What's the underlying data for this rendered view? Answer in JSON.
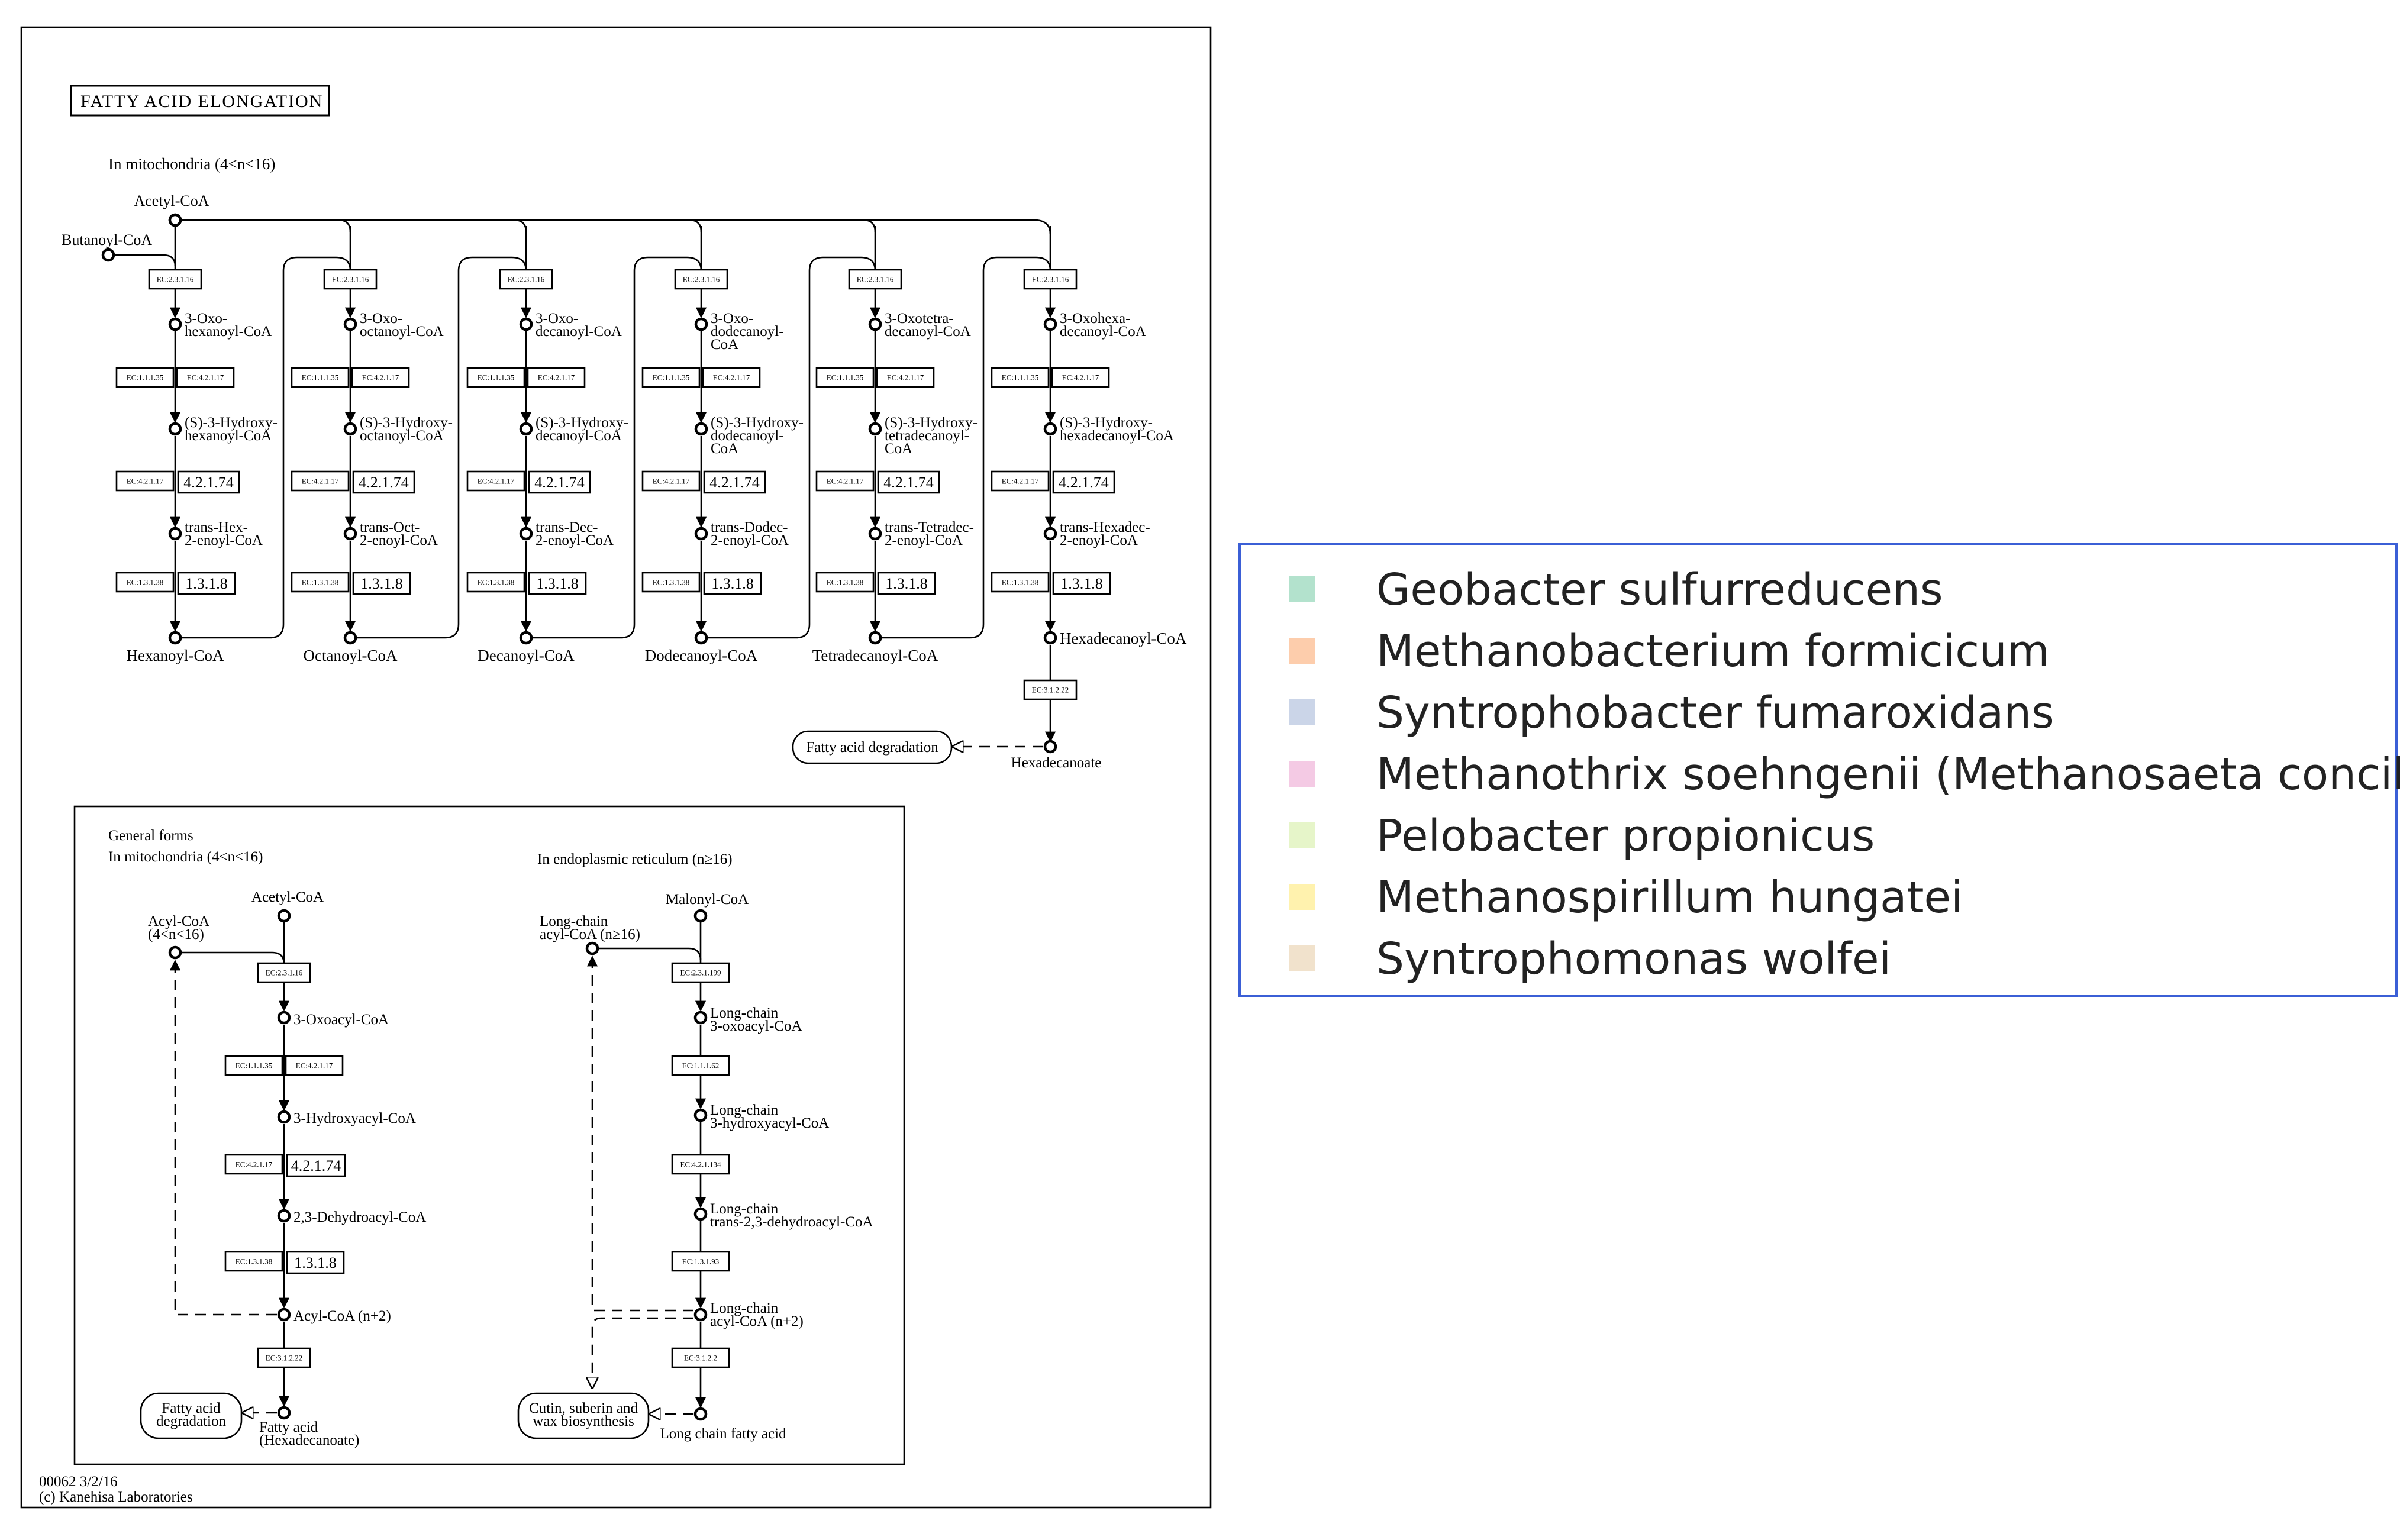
{
  "map": {
    "title": "FATTY ACID ELONGATION",
    "footer_id": "00062 3/2/16",
    "footer_copyright": "(c) Kanehisa Laboratories",
    "section_mito": "In mitochondria (4<n<16)",
    "top": {
      "acetyl": "Acetyl-CoA",
      "butanoyl": "Butanoyl-CoA",
      "columns": [
        {
          "oxo": [
            "3-Oxo-",
            "hexanoyl-CoA"
          ],
          "hydroxy": [
            "(S)-3-Hydroxy-",
            "hexanoyl-CoA"
          ],
          "enoyl": [
            "trans-Hex-",
            "2-enoyl-CoA"
          ],
          "product": "Hexanoyl-CoA"
        },
        {
          "oxo": [
            "3-Oxo-",
            "octanoyl-CoA"
          ],
          "hydroxy": [
            "(S)-3-Hydroxy-",
            "octanoyl-CoA"
          ],
          "enoyl": [
            "trans-Oct-",
            "2-enoyl-CoA"
          ],
          "product": "Octanoyl-CoA"
        },
        {
          "oxo": [
            "3-Oxo-",
            "decanoyl-CoA"
          ],
          "hydroxy": [
            "(S)-3-Hydroxy-",
            "decanoyl-CoA"
          ],
          "enoyl": [
            "trans-Dec-",
            "2-enoyl-CoA"
          ],
          "product": "Decanoyl-CoA"
        },
        {
          "oxo": [
            "3-Oxo-",
            "dodecanoyl-",
            "CoA"
          ],
          "hydroxy": [
            "(S)-3-Hydroxy-",
            "dodecanoyl-",
            "CoA"
          ],
          "enoyl": [
            "trans-Dodec-",
            "2-enoyl-CoA"
          ],
          "product": "Dodecanoyl-CoA"
        },
        {
          "oxo": [
            "3-Oxotetra-",
            "decanoyl-CoA"
          ],
          "hydroxy": [
            "(S)-3-Hydroxy-",
            "tetradecanoyl-",
            "CoA"
          ],
          "enoyl": [
            "trans-Tetradec-",
            "2-enoyl-CoA"
          ],
          "product": "Tetradecanoyl-CoA"
        },
        {
          "oxo": [
            "3-Oxohexa-",
            "decanoyl-CoA"
          ],
          "hydroxy": [
            "(S)-3-Hydroxy-",
            "hexadecanoyl-CoA"
          ],
          "enoyl": [
            "trans-Hexadec-",
            "2-enoyl-CoA"
          ],
          "product": "Hexadecanoyl-CoA"
        }
      ],
      "ec_condense": "EC:2.3.1.16",
      "ec_reduce_a": "EC:1.1.1.35",
      "ec_reduce_b": "EC:4.2.1.17",
      "ec_dehydrate": "EC:4.2.1.17",
      "ec_dehydrate_main": "4.2.1.74",
      "ec_enoyl": "EC:1.3.1.38",
      "ec_enoyl_main": "1.3.1.8",
      "ec_thioesterase": "EC:3.1.2.22",
      "fad_label": "Fatty acid degradation",
      "hexadecanoate": "Hexadecanoate"
    },
    "general": {
      "heading": "General forms",
      "mito": "In mitochondria (4<n<16)",
      "er": "In endoplasmic reticulum (n≥16)",
      "acetyl": "Acetyl-CoA",
      "acyl": [
        "Acyl-CoA",
        "(4<n<16)"
      ],
      "oxoacyl": "3-Oxoacyl-CoA",
      "hydroxyacyl": "3-Hydroxyacyl-CoA",
      "dehydroacyl": "2,3-Dehydroacyl-CoA",
      "acyl_n2": "Acyl-CoA (n+2)",
      "fatty_acid": [
        "Fatty acid",
        "(Hexadecanoate)"
      ],
      "fad": [
        "Fatty acid",
        "degradation"
      ],
      "malonyl": "Malonyl-CoA",
      "longchain_acyl": [
        "Long-chain",
        "acyl-CoA (n≥16)"
      ],
      "lc_oxo": [
        "Long-chain",
        "3-oxoacyl-CoA"
      ],
      "lc_hydroxy": [
        "Long-chain",
        "3-hydroxyacyl-CoA"
      ],
      "lc_dehydro": [
        "Long-chain",
        "trans-2,3-dehydroacyl-CoA"
      ],
      "lc_acyl_n2": [
        "Long-chain",
        "acyl-CoA (n+2)"
      ],
      "lc_fatty_acid": "Long chain fatty acid",
      "cutin": [
        "Cutin, suberin and",
        "wax biosynthesis"
      ],
      "ec_m1": "EC:2.3.1.16",
      "ec_m2a": "EC:1.1.1.35",
      "ec_m2b": "EC:4.2.1.17",
      "ec_m3": "EC:4.2.1.17",
      "ec_m3_main": "4.2.1.74",
      "ec_m4": "EC:1.3.1.38",
      "ec_m4_main": "1.3.1.8",
      "ec_m5": "EC:3.1.2.22",
      "ec_e1": "EC:2.3.1.199",
      "ec_e2": "EC:1.1.1.62",
      "ec_e3": "EC:4.2.1.134",
      "ec_e4": "EC:1.3.1.93",
      "ec_e5": "EC:3.1.2.2"
    }
  },
  "legend": {
    "items": [
      {
        "label": "Geobacter sulfurreducens",
        "color": "#b3e2cd"
      },
      {
        "label": "Methanobacterium formicicum",
        "color": "#fdcdac"
      },
      {
        "label": "Syntrophobacter fumaroxidans",
        "color": "#cbd5e8"
      },
      {
        "label": "Methanothrix soehngenii (Methanosaeta concilii)",
        "color": "#f4cae4"
      },
      {
        "label": "Pelobacter propionicus",
        "color": "#e6f5c9"
      },
      {
        "label": "Methanospirillum hungatei",
        "color": "#fff2ae"
      },
      {
        "label": "Syntrophomonas wolfei",
        "color": "#f1e2cc"
      }
    ]
  }
}
